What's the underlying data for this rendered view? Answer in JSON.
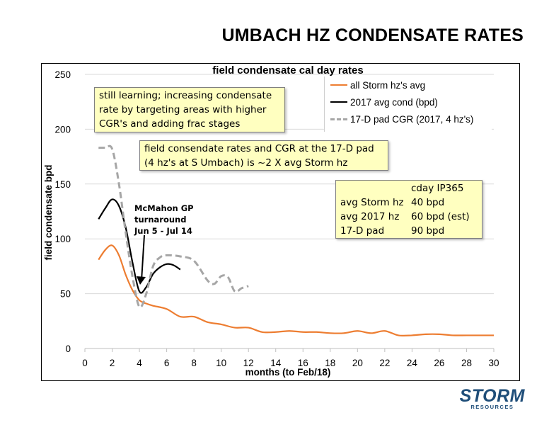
{
  "slide": {
    "title": "UMBACH HZ CONDENSATE RATES"
  },
  "logo": {
    "name": "STORM",
    "sub": "RESOURCES"
  },
  "chart_data": {
    "type": "line",
    "title": "field condensate cal day rates",
    "xlabel": "months (to Feb/18)",
    "ylabel": "field condensate bpd",
    "xlim": [
      0,
      30
    ],
    "ylim": [
      0,
      250
    ],
    "xticks": [
      0,
      2,
      4,
      6,
      8,
      10,
      12,
      14,
      16,
      18,
      20,
      22,
      24,
      26,
      28,
      30
    ],
    "yticks": [
      0,
      50,
      100,
      150,
      200,
      250
    ],
    "grid": "horizontal",
    "legend_placement": "top-right",
    "series": [
      {
        "name": "all Storm hz's avg",
        "color": "#ed7d31",
        "style": "solid",
        "x": [
          1,
          1.5,
          2,
          2.5,
          3,
          3.5,
          4,
          4.5,
          5,
          6,
          7,
          8,
          9,
          10,
          11,
          12,
          13,
          14,
          15,
          16,
          17,
          18,
          19,
          20,
          21,
          22,
          23,
          24,
          25,
          26,
          27,
          28,
          29,
          30
        ],
        "y": [
          81,
          90,
          94,
          85,
          67,
          53,
          44,
          41,
          39,
          36,
          29,
          29,
          24,
          22,
          19,
          19,
          15,
          15,
          16,
          15,
          15,
          14,
          14,
          16,
          14,
          16,
          12,
          12,
          13,
          13,
          12,
          12,
          12,
          12
        ]
      },
      {
        "name": "2017 avg cond (bpd)",
        "color": "#000000",
        "style": "solid",
        "x": [
          1,
          1.5,
          2,
          2.5,
          3,
          3.5,
          4,
          4.5,
          5,
          5.5,
          6,
          6.5,
          7
        ],
        "y": [
          118,
          128,
          136,
          130,
          110,
          78,
          52,
          56,
          68,
          74,
          77,
          76,
          72
        ]
      },
      {
        "name": "17-D pad CGR (2017, 4 hz's)",
        "color": "#a6a6a6",
        "style": "dashed",
        "x": [
          1,
          1.5,
          2,
          2.5,
          3,
          3.5,
          4,
          4.5,
          5,
          5.5,
          6,
          7,
          8,
          9,
          9.5,
          10,
          10.5,
          11,
          11.5,
          12
        ],
        "y": [
          183,
          183,
          182,
          150,
          105,
          65,
          38,
          50,
          75,
          83,
          85,
          84,
          80,
          62,
          59,
          66,
          65,
          52,
          55,
          57
        ]
      }
    ],
    "annotations": {
      "note1": [
        "still learning; increasing condensate",
        "rate by targeting areas with higher",
        "CGR's and adding frac stages"
      ],
      "note2": [
        "field consendate rates and CGR at the 17-D pad",
        "(4 hz's at S Umbach) is ~2 X avg Storm hz"
      ],
      "ip_table": {
        "header": "cday IP365",
        "rows": [
          {
            "label": "avg Storm hz",
            "value": "40 bpd"
          },
          {
            "label": "avg 2017 hz",
            "value": "60 bpd (est)"
          },
          {
            "label": "17-D pad",
            "value": "90 bpd"
          }
        ]
      },
      "mcmahon": [
        "McMahon GP",
        "turnaround",
        "Jun 5 - Jul 14"
      ]
    }
  }
}
